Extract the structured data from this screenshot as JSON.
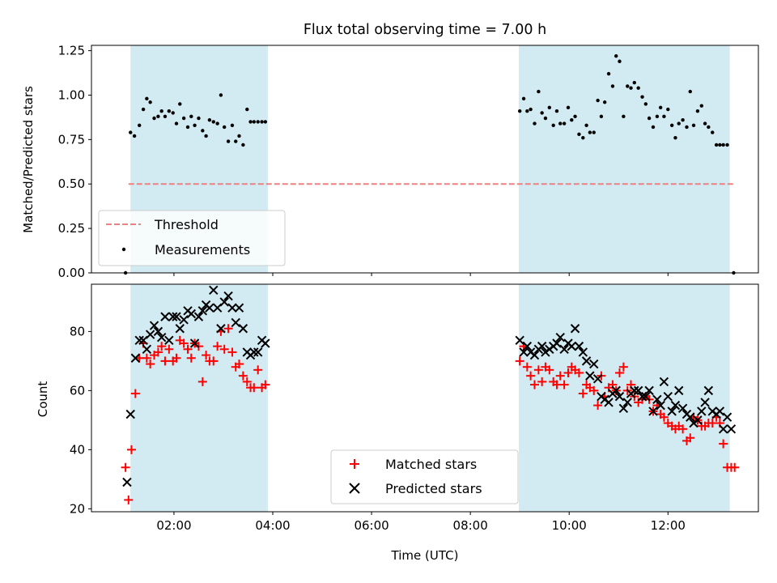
{
  "title": "Flux total observing time = 7.00 h",
  "colors": {
    "band": "#add8e6",
    "threshold": "#f08080",
    "matched": "#ff0000",
    "predicted": "#000000",
    "measurement": "#000000"
  },
  "chart_data": [
    {
      "type": "scatter",
      "ylabel": "Matched/Predicted stars",
      "xlim": [
        0.33,
        13.83
      ],
      "ylim": [
        0,
        1.28
      ],
      "y_ticks": [
        0.0,
        0.25,
        0.5,
        0.75,
        1.0,
        1.25
      ],
      "y_tick_labels": [
        "0.00",
        "0.25",
        "0.50",
        "0.75",
        "1.00",
        "1.25"
      ],
      "grid": false,
      "legend_placement": "lower-left",
      "shaded_intervals": [
        [
          1.12,
          3.9
        ],
        [
          8.98,
          13.25
        ]
      ],
      "threshold": {
        "name": "Threshold",
        "value": 0.5,
        "x_range": [
          1.08,
          13.35
        ],
        "style": "dashed"
      },
      "series": [
        {
          "name": "Measurements",
          "marker": "dot",
          "x": [
            1.02,
            1.12,
            1.2,
            1.3,
            1.38,
            1.45,
            1.52,
            1.6,
            1.68,
            1.75,
            1.82,
            1.9,
            1.98,
            2.05,
            2.12,
            2.2,
            2.28,
            2.35,
            2.42,
            2.5,
            2.58,
            2.65,
            2.72,
            2.8,
            2.88,
            2.95,
            3.02,
            3.1,
            3.18,
            3.25,
            3.32,
            3.4,
            3.48,
            3.55,
            3.62,
            3.7,
            3.78,
            3.85,
            9.0,
            9.08,
            9.15,
            9.22,
            9.3,
            9.38,
            9.45,
            9.52,
            9.6,
            9.68,
            9.75,
            9.82,
            9.9,
            9.98,
            10.05,
            10.12,
            10.2,
            10.28,
            10.35,
            10.42,
            10.5,
            10.58,
            10.65,
            10.72,
            10.8,
            10.88,
            10.95,
            11.02,
            11.1,
            11.18,
            11.25,
            11.32,
            11.4,
            11.48,
            11.55,
            11.62,
            11.7,
            11.78,
            11.85,
            11.92,
            12.0,
            12.08,
            12.15,
            12.22,
            12.3,
            12.38,
            12.45,
            12.52,
            12.6,
            12.68,
            12.75,
            12.82,
            12.9,
            12.98,
            13.05,
            13.12,
            13.2,
            13.33
          ],
          "values": [
            0.0,
            0.79,
            0.77,
            0.83,
            0.92,
            0.98,
            0.96,
            0.87,
            0.88,
            0.91,
            0.88,
            0.91,
            0.9,
            0.84,
            0.95,
            0.87,
            0.82,
            0.88,
            0.83,
            0.87,
            0.8,
            0.77,
            0.86,
            0.85,
            0.84,
            1.0,
            0.82,
            0.74,
            0.83,
            0.74,
            0.77,
            0.72,
            0.92,
            0.85,
            0.85,
            0.85,
            0.85,
            0.85,
            0.91,
            0.98,
            0.91,
            0.92,
            0.84,
            1.02,
            0.9,
            0.87,
            0.93,
            0.83,
            0.91,
            0.84,
            0.84,
            0.93,
            0.86,
            0.88,
            0.78,
            0.76,
            0.83,
            0.79,
            0.79,
            0.97,
            0.88,
            0.96,
            1.12,
            1.05,
            1.22,
            1.19,
            0.88,
            1.05,
            1.04,
            1.07,
            1.04,
            0.99,
            0.95,
            0.87,
            0.82,
            0.88,
            0.93,
            0.88,
            0.92,
            0.83,
            0.76,
            0.84,
            0.86,
            0.82,
            1.02,
            0.83,
            0.91,
            0.94,
            0.84,
            0.82,
            0.79,
            0.72,
            0.72,
            0.72,
            0.72,
            0.0
          ]
        }
      ]
    },
    {
      "type": "scatter",
      "xlabel": "Time (UTC)",
      "ylabel": "Count",
      "xlim": [
        0.33,
        13.83
      ],
      "ylim": [
        19,
        96
      ],
      "x_ticks": [
        2,
        4,
        6,
        8,
        10,
        12
      ],
      "x_tick_labels": [
        "02:00",
        "04:00",
        "06:00",
        "08:00",
        "10:00",
        "12:00"
      ],
      "y_ticks": [
        20,
        40,
        60,
        80
      ],
      "y_tick_labels": [
        "20",
        "40",
        "60",
        "80"
      ],
      "grid": false,
      "legend_placement": "lower-center",
      "shaded_intervals": [
        [
          1.12,
          3.9
        ],
        [
          8.98,
          13.25
        ]
      ],
      "series": [
        {
          "name": "Matched stars",
          "marker": "plus",
          "x": [
            1.02,
            1.08,
            1.14,
            1.22,
            1.3,
            1.38,
            1.45,
            1.52,
            1.6,
            1.68,
            1.75,
            1.82,
            1.9,
            1.98,
            2.05,
            2.12,
            2.2,
            2.28,
            2.35,
            2.42,
            2.5,
            2.58,
            2.65,
            2.72,
            2.8,
            2.88,
            2.95,
            3.02,
            3.1,
            3.18,
            3.25,
            3.32,
            3.4,
            3.48,
            3.55,
            3.62,
            3.7,
            3.78,
            3.85,
            9.0,
            9.08,
            9.15,
            9.22,
            9.3,
            9.38,
            9.45,
            9.52,
            9.6,
            9.68,
            9.75,
            9.82,
            9.9,
            9.98,
            10.05,
            10.12,
            10.2,
            10.28,
            10.35,
            10.42,
            10.5,
            10.58,
            10.65,
            10.72,
            10.8,
            10.88,
            10.95,
            11.02,
            11.1,
            11.18,
            11.25,
            11.32,
            11.4,
            11.48,
            11.55,
            11.62,
            11.7,
            11.78,
            11.85,
            11.92,
            12.0,
            12.08,
            12.15,
            12.22,
            12.3,
            12.38,
            12.45,
            12.52,
            12.6,
            12.68,
            12.75,
            12.82,
            12.9,
            12.98,
            13.05,
            13.12,
            13.2,
            13.28,
            13.35
          ],
          "values": [
            34,
            23,
            40,
            59,
            71,
            76,
            71,
            69,
            72,
            73,
            75,
            70,
            74,
            70,
            71,
            77,
            76,
            74,
            71,
            76,
            75,
            63,
            72,
            70,
            70,
            75,
            80,
            74,
            81,
            73,
            68,
            69,
            65,
            63,
            61,
            61,
            67,
            61,
            62,
            70,
            75,
            68,
            65,
            62,
            67,
            63,
            68,
            67,
            63,
            62,
            65,
            62,
            66,
            68,
            67,
            66,
            59,
            62,
            61,
            60,
            55,
            65,
            58,
            61,
            62,
            60,
            66,
            68,
            60,
            62,
            58,
            56,
            57,
            58,
            57,
            53,
            55,
            52,
            51,
            49,
            48,
            47,
            48,
            47,
            43,
            44,
            51,
            50,
            48,
            48,
            49,
            49,
            51,
            49,
            42,
            34,
            34,
            34
          ],
          "note": ""
        },
        {
          "name": "Predicted stars",
          "marker": "x",
          "x": [
            1.05,
            1.12,
            1.22,
            1.3,
            1.38,
            1.45,
            1.52,
            1.6,
            1.68,
            1.75,
            1.82,
            1.9,
            1.98,
            2.05,
            2.12,
            2.2,
            2.28,
            2.35,
            2.42,
            2.5,
            2.58,
            2.65,
            2.72,
            2.8,
            2.88,
            2.95,
            3.02,
            3.1,
            3.18,
            3.25,
            3.32,
            3.4,
            3.48,
            3.55,
            3.62,
            3.7,
            3.78,
            3.85,
            9.0,
            9.08,
            9.15,
            9.22,
            9.3,
            9.38,
            9.45,
            9.52,
            9.6,
            9.68,
            9.75,
            9.82,
            9.9,
            9.98,
            10.05,
            10.12,
            10.2,
            10.28,
            10.35,
            10.42,
            10.5,
            10.58,
            10.65,
            10.72,
            10.8,
            10.88,
            10.95,
            11.02,
            11.1,
            11.18,
            11.25,
            11.32,
            11.4,
            11.48,
            11.55,
            11.62,
            11.7,
            11.78,
            11.85,
            11.92,
            12.0,
            12.08,
            12.15,
            12.22,
            12.3,
            12.38,
            12.45,
            12.52,
            12.6,
            12.68,
            12.75,
            12.82,
            12.9,
            12.98,
            13.05,
            13.12,
            13.2,
            13.28
          ],
          "values": [
            29,
            52,
            71,
            77,
            77,
            74,
            79,
            82,
            80,
            78,
            85,
            77,
            85,
            85,
            81,
            84,
            87,
            86,
            76,
            85,
            87,
            89,
            88,
            94,
            88,
            81,
            90,
            92,
            88,
            83,
            88,
            81,
            73,
            72,
            73,
            73,
            77,
            76,
            77,
            73,
            75,
            73,
            72,
            74,
            75,
            73,
            74,
            75,
            76,
            78,
            74,
            76,
            75,
            81,
            75,
            73,
            70,
            65,
            69,
            64,
            58,
            57,
            56,
            59,
            60,
            58,
            54,
            56,
            59,
            60,
            60,
            58,
            58,
            60,
            53,
            57,
            55,
            63,
            58,
            53,
            55,
            60,
            54,
            52,
            51,
            49,
            50,
            53,
            56,
            60,
            53,
            52,
            53,
            47,
            51,
            47
          ]
        }
      ]
    }
  ]
}
